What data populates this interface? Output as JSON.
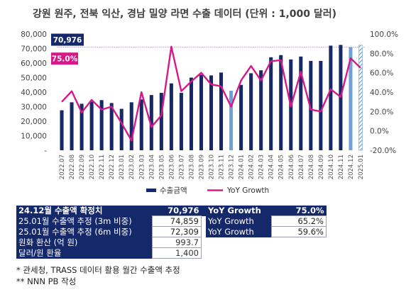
{
  "title": "강원 원주, 전북 익산, 경남 밀양  라면 수출 데이터 (단위 : 1,000 달러)",
  "chart_data": {
    "type": "bar",
    "categories": [
      "2022.07",
      "2022.08",
      "2022.09",
      "2022.10",
      "2022.11",
      "2022.12",
      "2023.01",
      "2023.02",
      "2023.03",
      "2023.04",
      "2023.05",
      "2023.06",
      "2023.07",
      "2023.08",
      "2023.09",
      "2023.10",
      "2023.11",
      "2023.12",
      "2024.01",
      "2024.02",
      "2024.03",
      "2024.04",
      "2024.05",
      "2024.06",
      "2024.07",
      "2024.08",
      "2024.09",
      "2024.10",
      "2024.11",
      "2024.12",
      "2025.01"
    ],
    "series": [
      {
        "name": "수출금액",
        "type": "bar",
        "axis": "left",
        "values": [
          27500,
          33000,
          32000,
          33500,
          34500,
          32500,
          28500,
          33000,
          35000,
          38000,
          39500,
          46000,
          39500,
          50000,
          52000,
          51500,
          53500,
          41000,
          45000,
          53000,
          55000,
          64000,
          65500,
          62500,
          64500,
          61500,
          61500,
          72000,
          72500,
          70976,
          72309
        ]
      },
      {
        "name": "YoY Growth",
        "type": "line",
        "axis": "right",
        "values": [
          0.3,
          0.41,
          0.19,
          0.32,
          0.22,
          0.25,
          0.08,
          -0.1,
          0.4,
          0.04,
          0.16,
          0.87,
          0.41,
          0.51,
          0.6,
          0.48,
          0.46,
          0.25,
          0.52,
          0.67,
          0.52,
          0.72,
          0.73,
          0.25,
          0.61,
          0.22,
          0.2,
          0.43,
          0.35,
          0.75,
          0.65
        ]
      }
    ],
    "bar_colors": [
      "#15286a",
      "#15286a",
      "#15286a",
      "#15286a",
      "#15286a",
      "#15286a",
      "#15286a",
      "#15286a",
      "#15286a",
      "#15286a",
      "#15286a",
      "#15286a",
      "#15286a",
      "#15286a",
      "#15286a",
      "#15286a",
      "#15286a",
      "#6fa0d8",
      "#15286a",
      "#15286a",
      "#15286a",
      "#15286a",
      "#15286a",
      "#15286a",
      "#15286a",
      "#15286a",
      "#15286a",
      "#15286a",
      "#15286a",
      "#6fa0d8",
      "#15286a"
    ],
    "last_bar_hatched": true,
    "reference_line_value": 70976,
    "callouts": {
      "bar": "70,976",
      "line": "75.0%"
    },
    "y_left": {
      "min": 0,
      "max": 80000,
      "ticks": [
        "-",
        "10,000",
        "20,000",
        "30,000",
        "40,000",
        "50,000",
        "60,000",
        "70,000",
        "80,000"
      ]
    },
    "y_right": {
      "min": -0.2,
      "max": 1.0,
      "ticks": [
        "-20.0%",
        "0.0%",
        "20.0%",
        "40.0%",
        "60.0%",
        "80.0%",
        "100.0%"
      ]
    },
    "legend_position": "bottom",
    "grid": false
  },
  "colors": {
    "bar": "#15286a",
    "bar_light": "#6fa0d8",
    "line": "#d6198a",
    "ref": "#c0a0c8"
  },
  "legend": {
    "bar_label": "수출금액",
    "line_label": "YoY Growth"
  },
  "summary": [
    {
      "label": "24.12월 수출액 확정치",
      "value": "70,976",
      "yoy_label": "YoY Growth",
      "yoy_value": "75.0%"
    },
    {
      "label": "25.01월 수출액 추정 (3m 비중)",
      "value": "74,859",
      "yoy_label": "YoY Growth",
      "yoy_value": "65.2%"
    },
    {
      "label": "25.01월 수출액 추정 (6m 비중)",
      "value": "72,309",
      "yoy_label": "YoY Growth",
      "yoy_value": "59.6%"
    },
    {
      "label": "원화 환산 (억 원)",
      "value": "993.7"
    },
    {
      "label": "달러/원 환율",
      "value": "1,400"
    }
  ],
  "notes": [
    "* 관세청, TRASS 데이터 활용 월간 수출액 추정",
    "** NNN PB 작성"
  ]
}
